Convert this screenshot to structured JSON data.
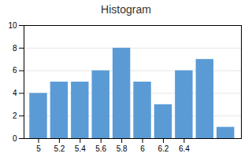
{
  "chart_data": {
    "type": "bar",
    "title": "Histogram",
    "x": [
      5.0,
      5.2,
      5.4,
      5.6,
      5.8,
      6.0,
      6.2,
      6.4,
      6.6,
      6.8
    ],
    "values": [
      4,
      5,
      5,
      6,
      8,
      5,
      3,
      6,
      7,
      1
    ],
    "color": "#5B9BD5",
    "xlim": [
      4.86,
      6.95
    ],
    "xticks": [
      5,
      5.2,
      5.4,
      5.6,
      5.8,
      6,
      6.2,
      6.4
    ],
    "ylim": [
      0,
      10
    ],
    "yticks": [
      0,
      2,
      4,
      6,
      8,
      10
    ],
    "grid": true
  }
}
